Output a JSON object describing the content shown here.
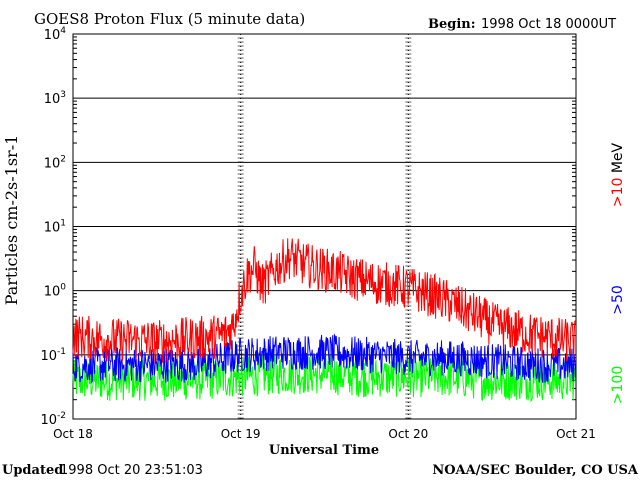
{
  "chart_data": {
    "type": "line",
    "title": "GOES8 Proton Flux (5 minute data)",
    "begin_label": "Begin:",
    "begin_value": "1998 Oct 18 0000UT",
    "ylabel": "Particles cm-2s-1sr-1",
    "xlabel": "Universal Time",
    "y_scale": "log",
    "ylim": [
      0.01,
      10000
    ],
    "y_ticks": [
      {
        "mantissa": "10",
        "exp": "-2"
      },
      {
        "mantissa": "10",
        "exp": "-1"
      },
      {
        "mantissa": "10",
        "exp": "0"
      },
      {
        "mantissa": "10",
        "exp": "1"
      },
      {
        "mantissa": "10",
        "exp": "2"
      },
      {
        "mantissa": "10",
        "exp": "3"
      },
      {
        "mantissa": "10",
        "exp": "4"
      }
    ],
    "x_ticks": [
      "Oct 18",
      "Oct 19",
      "Oct 20",
      "Oct 21"
    ],
    "grid": true,
    "series": [
      {
        "name": ">10",
        "unit": "MeV",
        "color": "#ff0000",
        "hours": [
          0,
          3,
          6,
          9,
          12,
          15,
          18,
          21,
          22,
          23,
          24,
          25,
          26,
          27,
          28,
          29,
          30,
          31,
          32,
          33,
          34,
          36,
          38,
          40,
          42,
          44,
          46,
          48,
          49,
          50,
          52,
          54,
          56,
          58,
          60,
          62,
          64,
          66,
          68,
          70,
          72
        ],
        "values": [
          0.2,
          0.18,
          0.17,
          0.17,
          0.16,
          0.17,
          0.18,
          0.2,
          0.22,
          0.3,
          0.9,
          1.8,
          2.3,
          1.2,
          1.5,
          2.3,
          2.8,
          3.4,
          3.0,
          2.6,
          2.4,
          2.1,
          1.9,
          1.6,
          1.4,
          1.3,
          1.2,
          1.1,
          1.0,
          0.95,
          0.8,
          0.65,
          0.5,
          0.4,
          0.3,
          0.26,
          0.23,
          0.2,
          0.19,
          0.17,
          0.16
        ]
      },
      {
        "name": ">50",
        "color": "#0000ff",
        "hours": [
          0,
          6,
          12,
          18,
          24,
          30,
          36,
          42,
          48,
          54,
          60,
          66,
          72
        ],
        "values": [
          0.07,
          0.07,
          0.07,
          0.07,
          0.1,
          0.11,
          0.11,
          0.1,
          0.09,
          0.09,
          0.08,
          0.07,
          0.07
        ]
      },
      {
        "name": ">100",
        "color": "#00ff00",
        "hours": [
          0,
          6,
          12,
          18,
          24,
          30,
          36,
          42,
          48,
          54,
          60,
          66,
          72
        ],
        "values": [
          0.04,
          0.04,
          0.04,
          0.04,
          0.045,
          0.05,
          0.05,
          0.045,
          0.045,
          0.045,
          0.04,
          0.04,
          0.04
        ]
      }
    ]
  },
  "footer": {
    "updated_label": "Updated",
    "updated_value": "1998 Oct 20 23:51:03",
    "source": "NOAA/SEC Boulder, CO USA"
  }
}
